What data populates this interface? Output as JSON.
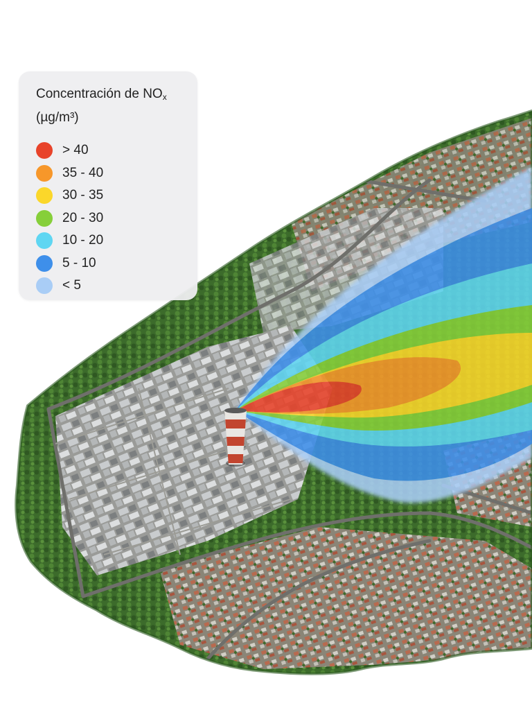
{
  "legend": {
    "title_main": "Concentración de NO",
    "title_sub": "x",
    "title_units": "(µg/m³)",
    "items": [
      {
        "label": "> 40",
        "color": "#e8432a"
      },
      {
        "label": "35 - 40",
        "color": "#f7972a"
      },
      {
        "label": "30 - 35",
        "color": "#fbd72a"
      },
      {
        "label": "20 - 30",
        "color": "#86cf3a"
      },
      {
        "label": "10 - 20",
        "color": "#5fd6f2"
      },
      {
        "label": "5 - 10",
        "color": "#3e8fea"
      },
      {
        "label": "< 5",
        "color": "#a9cdf6"
      }
    ]
  },
  "map": {
    "base": "aerial-imagery",
    "features": [
      "industrial-plant",
      "smokestack",
      "residential-blocks",
      "roads",
      "forest"
    ],
    "plume_colors": [
      "#a9cdf6",
      "#3e8fea",
      "#5fd6f2",
      "#86cf3a",
      "#fbd72a",
      "#f7972a",
      "#e8432a"
    ]
  }
}
